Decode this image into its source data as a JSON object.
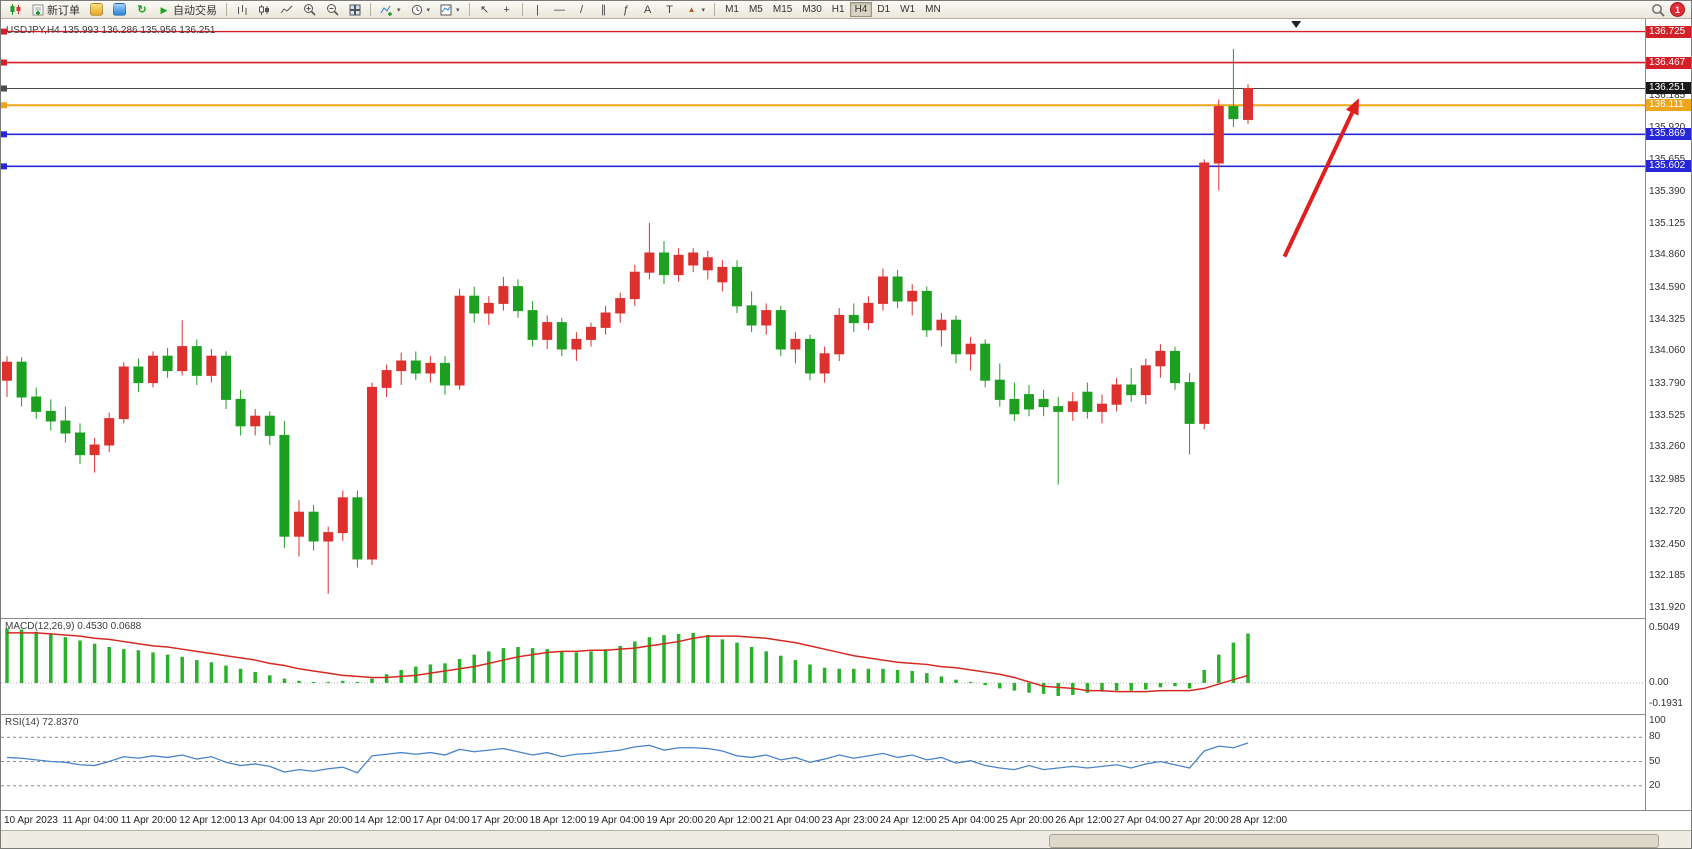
{
  "toolbar": {
    "new_order": "新订单",
    "autotrading": "自动交易",
    "timeframes": [
      "M1",
      "M5",
      "M15",
      "M30",
      "H1",
      "H4",
      "D1",
      "W1",
      "MN"
    ],
    "active_timeframe": "H4",
    "badge": "1"
  },
  "icons": {
    "refresh": "↻",
    "play": "▶",
    "caret": "▾",
    "cursor": "↖",
    "crosshair": "+",
    "vline": "|",
    "hline": "—",
    "trendline": "/",
    "channel": "∥",
    "fibonacci": "ƒ",
    "text": "A",
    "label": "T",
    "arrows": "▲"
  },
  "chart": {
    "symbol_label": "USDJPY,H4 135.993 136.286 135.956 136.251",
    "y_range": [
      131.83,
      136.83
    ],
    "levels": [
      {
        "price": 136.725,
        "color": "#d41f29",
        "width": 1.4
      },
      {
        "price": 136.467,
        "color": "#d41f29",
        "width": 1.6
      },
      {
        "price": 136.251,
        "color": "#4a4a4a",
        "width": 1
      },
      {
        "price": 136.111,
        "color": "#efa51c",
        "width": 2
      },
      {
        "price": 135.869,
        "color": "#2626d8",
        "width": 1.6
      },
      {
        "price": 135.602,
        "color": "#2626d8",
        "width": 1.6
      }
    ],
    "price_axis": {
      "gridline_labels": [
        "136.185",
        "135.920",
        "135.655",
        "135.390",
        "135.125",
        "134.860",
        "134.590",
        "134.325",
        "134.060",
        "133.790",
        "133.525",
        "133.260",
        "132.985",
        "132.720",
        "132.450",
        "132.185",
        "131.920"
      ],
      "tags": [
        {
          "label": "136.725",
          "bg": "#d41f29"
        },
        {
          "label": "136.467",
          "bg": "#d41f29"
        },
        {
          "label": "136.251",
          "bg": "#1a1a1a"
        },
        {
          "label": "136.111",
          "bg": "#efa51c"
        },
        {
          "label": "135.869",
          "bg": "#2626d8"
        },
        {
          "label": "135.602",
          "bg": "#2626d8"
        }
      ]
    },
    "arrow": {
      "i1": 87.5,
      "p1": 134.85,
      "i2": 92.6,
      "p2": 136.17,
      "color": "#e01f1f"
    },
    "time_marker_i": 88.3,
    "time_axis": [
      "10 Apr 2023",
      "11 Apr 04:00",
      "11 Apr 20:00",
      "12 Apr 12:00",
      "13 Apr 04:00",
      "13 Apr 20:00",
      "14 Apr 12:00",
      "17 Apr 04:00",
      "17 Apr 20:00",
      "18 Apr 12:00",
      "19 Apr 04:00",
      "19 Apr 20:00",
      "20 Apr 12:00",
      "21 Apr 04:00",
      "23 Apr 23:00",
      "24 Apr 12:00",
      "25 Apr 04:00",
      "25 Apr 20:00",
      "26 Apr 12:00",
      "27 Apr 04:00",
      "27 Apr 20:00",
      "28 Apr 12:00"
    ]
  },
  "macd": {
    "label": "MACD(12,26,9) 0.4530 0.0688",
    "scale": [
      "0.5049",
      "0.00",
      "-0.1931"
    ],
    "scale_values": [
      0.5049,
      0,
      -0.1931
    ],
    "range": [
      -0.294,
      0.587
    ],
    "hist_color": "#28b22a",
    "signal_color": "#d42a22"
  },
  "rsi": {
    "label": "RSI(14) 72.8370",
    "scale_labels": [
      "100",
      "80",
      "50",
      "20"
    ],
    "scale_values": [
      100,
      80,
      50,
      20
    ],
    "levels": [
      80,
      50,
      20
    ],
    "line_color": "#4a84c8"
  },
  "chart_data": {
    "type": "candlestick",
    "symbol": "USDJPY",
    "timeframe": "H4",
    "title": "USDJPY,H4",
    "current_bar": {
      "open": 135.993,
      "high": 136.286,
      "low": 135.956,
      "close": 136.251
    },
    "up_color": "#dd312e",
    "down_color": "#1da022",
    "y_range": [
      131.83,
      136.83
    ],
    "x_labels": [
      "10 Apr 2023",
      "11 Apr 04:00",
      "11 Apr 20:00",
      "12 Apr 12:00",
      "13 Apr 04:00",
      "13 Apr 20:00",
      "14 Apr 12:00",
      "17 Apr 04:00",
      "17 Apr 20:00",
      "18 Apr 12:00",
      "19 Apr 04:00",
      "19 Apr 20:00",
      "20 Apr 12:00",
      "21 Apr 04:00",
      "23 Apr 23:00",
      "24 Apr 12:00",
      "25 Apr 04:00",
      "25 Apr 20:00",
      "26 Apr 12:00",
      "27 Apr 04:00",
      "27 Apr 20:00",
      "28 Apr 12:00"
    ],
    "candles": [
      [
        133.82,
        134.02,
        133.68,
        133.97
      ],
      [
        133.97,
        134.01,
        133.6,
        133.68
      ],
      [
        133.68,
        133.76,
        133.5,
        133.56
      ],
      [
        133.56,
        133.66,
        133.4,
        133.48
      ],
      [
        133.48,
        133.6,
        133.3,
        133.38
      ],
      [
        133.38,
        133.46,
        133.12,
        133.2
      ],
      [
        133.2,
        133.34,
        133.05,
        133.28
      ],
      [
        133.28,
        133.55,
        133.22,
        133.5
      ],
      [
        133.5,
        133.97,
        133.46,
        133.93
      ],
      [
        133.93,
        134.0,
        133.72,
        133.8
      ],
      [
        133.8,
        134.06,
        133.76,
        134.02
      ],
      [
        134.02,
        134.09,
        133.84,
        133.9
      ],
      [
        133.9,
        134.32,
        133.86,
        134.1
      ],
      [
        134.1,
        134.16,
        133.78,
        133.86
      ],
      [
        133.86,
        134.08,
        133.8,
        134.02
      ],
      [
        134.02,
        134.06,
        133.58,
        133.66
      ],
      [
        133.66,
        133.74,
        133.36,
        133.44
      ],
      [
        133.44,
        133.58,
        133.36,
        133.52
      ],
      [
        133.52,
        133.56,
        133.28,
        133.36
      ],
      [
        133.36,
        133.48,
        132.42,
        132.52
      ],
      [
        132.52,
        132.82,
        132.35,
        132.72
      ],
      [
        132.72,
        132.78,
        132.4,
        132.48
      ],
      [
        132.48,
        132.6,
        132.04,
        132.55
      ],
      [
        132.55,
        132.9,
        132.48,
        132.84
      ],
      [
        132.84,
        132.9,
        132.26,
        132.33
      ],
      [
        132.33,
        133.8,
        132.28,
        133.76
      ],
      [
        133.76,
        133.95,
        133.68,
        133.9
      ],
      [
        133.9,
        134.05,
        133.78,
        133.98
      ],
      [
        133.98,
        134.06,
        133.82,
        133.88
      ],
      [
        133.88,
        134.02,
        133.8,
        133.96
      ],
      [
        133.96,
        134.02,
        133.7,
        133.78
      ],
      [
        133.78,
        134.58,
        133.74,
        134.52
      ],
      [
        134.52,
        134.6,
        134.3,
        134.38
      ],
      [
        134.38,
        134.52,
        134.28,
        134.46
      ],
      [
        134.46,
        134.68,
        134.4,
        134.6
      ],
      [
        134.6,
        134.66,
        134.34,
        134.4
      ],
      [
        134.4,
        134.48,
        134.1,
        134.16
      ],
      [
        134.16,
        134.36,
        134.08,
        134.3
      ],
      [
        134.3,
        134.34,
        134.02,
        134.08
      ],
      [
        134.08,
        134.22,
        133.98,
        134.16
      ],
      [
        134.16,
        134.3,
        134.1,
        134.26
      ],
      [
        134.26,
        134.44,
        134.2,
        134.38
      ],
      [
        134.38,
        134.55,
        134.3,
        134.5
      ],
      [
        134.5,
        134.78,
        134.44,
        134.72
      ],
      [
        134.72,
        135.13,
        134.66,
        134.88
      ],
      [
        134.88,
        134.98,
        134.62,
        134.7
      ],
      [
        134.7,
        134.92,
        134.64,
        134.86
      ],
      [
        134.78,
        134.92,
        134.72,
        134.88
      ],
      [
        134.74,
        134.9,
        134.66,
        134.84
      ],
      [
        134.64,
        134.82,
        134.56,
        134.76
      ],
      [
        134.76,
        134.82,
        134.38,
        134.44
      ],
      [
        134.44,
        134.56,
        134.22,
        134.28
      ],
      [
        134.28,
        134.46,
        134.2,
        134.4
      ],
      [
        134.4,
        134.44,
        134.02,
        134.08
      ],
      [
        134.08,
        134.22,
        133.96,
        134.16
      ],
      [
        134.16,
        134.2,
        133.82,
        133.88
      ],
      [
        133.88,
        134.1,
        133.8,
        134.04
      ],
      [
        134.04,
        134.42,
        133.98,
        134.36
      ],
      [
        134.36,
        134.46,
        134.22,
        134.3
      ],
      [
        134.3,
        134.52,
        134.24,
        134.46
      ],
      [
        134.46,
        134.75,
        134.4,
        134.68
      ],
      [
        134.68,
        134.74,
        134.42,
        134.48
      ],
      [
        134.48,
        134.62,
        134.36,
        134.56
      ],
      [
        134.56,
        134.6,
        134.18,
        134.24
      ],
      [
        134.24,
        134.38,
        134.1,
        134.32
      ],
      [
        134.32,
        134.36,
        133.96,
        134.04
      ],
      [
        134.04,
        134.18,
        133.9,
        134.12
      ],
      [
        134.12,
        134.16,
        133.76,
        133.82
      ],
      [
        133.82,
        133.96,
        133.6,
        133.66
      ],
      [
        133.66,
        133.8,
        133.48,
        133.54
      ],
      [
        133.7,
        133.78,
        133.52,
        133.58
      ],
      [
        133.66,
        133.74,
        133.52,
        133.6
      ],
      [
        133.6,
        133.68,
        132.95,
        133.56
      ],
      [
        133.56,
        133.72,
        133.48,
        133.64
      ],
      [
        133.72,
        133.8,
        133.5,
        133.56
      ],
      [
        133.56,
        133.7,
        133.46,
        133.62
      ],
      [
        133.62,
        133.84,
        133.56,
        133.78
      ],
      [
        133.78,
        133.92,
        133.64,
        133.7
      ],
      [
        133.7,
        134.0,
        133.62,
        133.94
      ],
      [
        133.94,
        134.12,
        133.84,
        134.06
      ],
      [
        134.06,
        134.1,
        133.74,
        133.8
      ],
      [
        133.8,
        133.88,
        133.2,
        133.46
      ],
      [
        133.46,
        135.66,
        133.41,
        135.63
      ],
      [
        135.63,
        136.16,
        135.4,
        136.1
      ],
      [
        136.1,
        136.58,
        135.93,
        136.0
      ],
      [
        135.993,
        136.286,
        135.956,
        136.251
      ]
    ],
    "indicators": [
      {
        "name": "MACD",
        "params": "12,26,9",
        "values": [
          0.453,
          0.0688
        ],
        "histogram": [
          0.5,
          0.49,
          0.47,
          0.45,
          0.42,
          0.39,
          0.36,
          0.33,
          0.31,
          0.3,
          0.28,
          0.26,
          0.24,
          0.21,
          0.19,
          0.16,
          0.13,
          0.1,
          0.07,
          0.04,
          0.02,
          0.01,
          0.01,
          0.02,
          0.01,
          0.04,
          0.08,
          0.12,
          0.15,
          0.17,
          0.18,
          0.22,
          0.26,
          0.29,
          0.32,
          0.33,
          0.32,
          0.31,
          0.29,
          0.28,
          0.29,
          0.31,
          0.34,
          0.38,
          0.42,
          0.44,
          0.45,
          0.46,
          0.44,
          0.4,
          0.37,
          0.33,
          0.29,
          0.25,
          0.21,
          0.17,
          0.14,
          0.13,
          0.13,
          0.13,
          0.13,
          0.12,
          0.11,
          0.09,
          0.06,
          0.03,
          0.01,
          -0.02,
          -0.05,
          -0.07,
          -0.09,
          -0.1,
          -0.12,
          -0.11,
          -0.09,
          -0.08,
          -0.07,
          -0.07,
          -0.06,
          -0.04,
          -0.03,
          -0.05,
          0.12,
          0.26,
          0.37,
          0.453
        ],
        "signal": [
          0.46,
          0.46,
          0.46,
          0.45,
          0.44,
          0.43,
          0.41,
          0.4,
          0.38,
          0.36,
          0.34,
          0.33,
          0.31,
          0.29,
          0.27,
          0.25,
          0.23,
          0.21,
          0.18,
          0.16,
          0.13,
          0.11,
          0.09,
          0.07,
          0.06,
          0.05,
          0.05,
          0.06,
          0.07,
          0.09,
          0.11,
          0.13,
          0.15,
          0.18,
          0.21,
          0.24,
          0.26,
          0.28,
          0.29,
          0.29,
          0.3,
          0.3,
          0.31,
          0.32,
          0.34,
          0.36,
          0.38,
          0.41,
          0.43,
          0.43,
          0.43,
          0.42,
          0.41,
          0.39,
          0.37,
          0.34,
          0.31,
          0.28,
          0.25,
          0.23,
          0.21,
          0.19,
          0.18,
          0.17,
          0.15,
          0.14,
          0.12,
          0.1,
          0.08,
          0.05,
          0.01,
          -0.03,
          -0.04,
          -0.05,
          -0.07,
          -0.07,
          -0.08,
          -0.08,
          -0.08,
          -0.07,
          -0.07,
          -0.07,
          -0.05,
          -0.01,
          0.03,
          0.0688
        ]
      },
      {
        "name": "RSI",
        "params": "14",
        "value": 72.837,
        "series": [
          55,
          54,
          52,
          50,
          49,
          46,
          45,
          50,
          56,
          54,
          57,
          55,
          58,
          53,
          56,
          49,
          45,
          47,
          44,
          37,
          40,
          38,
          41,
          43,
          36,
          57,
          59,
          61,
          59,
          61,
          58,
          65,
          62,
          64,
          66,
          62,
          58,
          61,
          56,
          59,
          60,
          62,
          64,
          68,
          70,
          64,
          67,
          67,
          66,
          63,
          57,
          55,
          58,
          52,
          55,
          49,
          53,
          58,
          54,
          57,
          60,
          55,
          58,
          52,
          55,
          48,
          51,
          45,
          42,
          40,
          45,
          40,
          42,
          44,
          42,
          44,
          46,
          42,
          47,
          50,
          46,
          42,
          63,
          69,
          67,
          72.84
        ]
      }
    ]
  }
}
